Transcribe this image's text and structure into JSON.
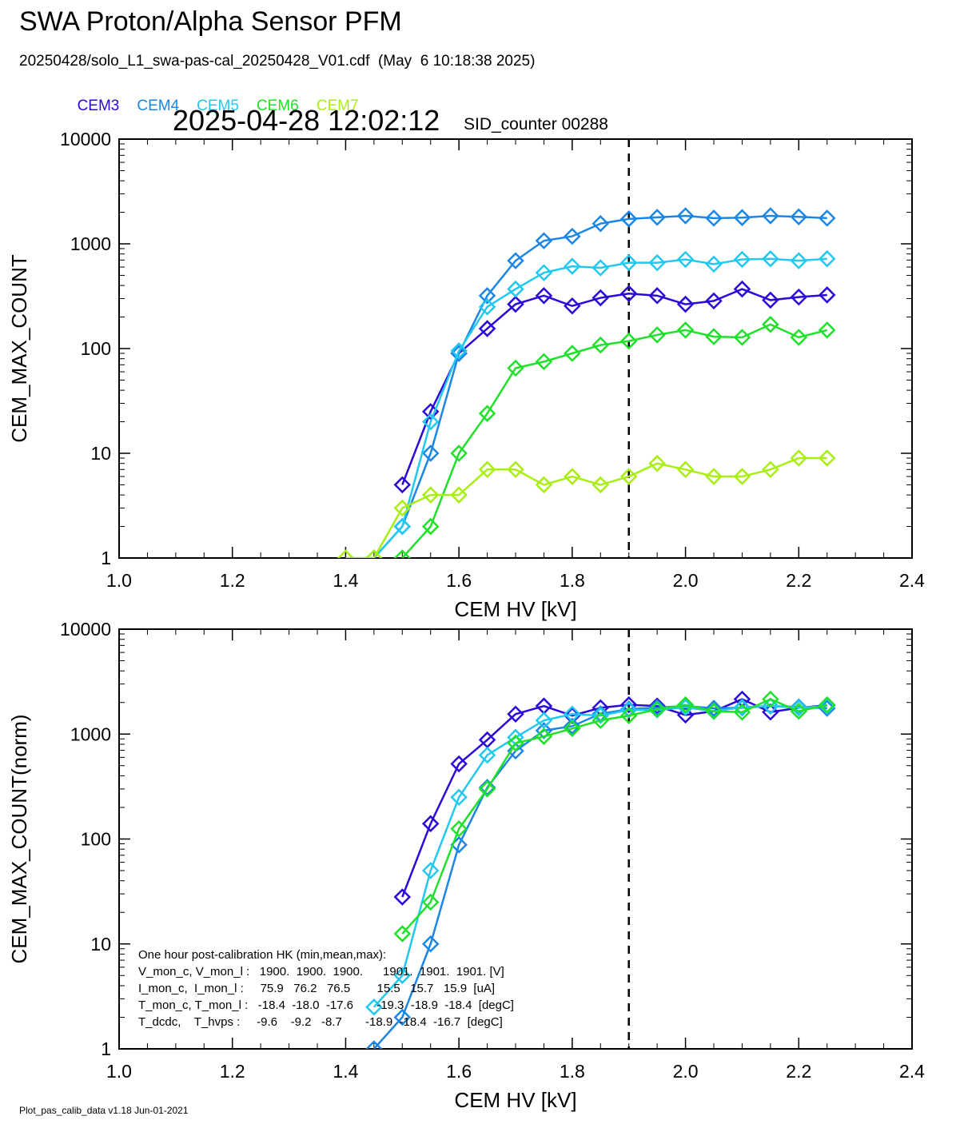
{
  "header": {
    "title": "SWA Proton/Alpha Sensor PFM",
    "subtitle": "20250428/solo_L1_swa-pas-cal_20250428_V01.cdf  (May  6 10:18:38 2025)",
    "datetime": "2025-04-28 12:02:12",
    "sid": "SID_counter 00288"
  },
  "legend": [
    {
      "name": "CEM3",
      "color": "#2a0ad6"
    },
    {
      "name": "CEM4",
      "color": "#1a86e6"
    },
    {
      "name": "CEM5",
      "color": "#22c8f0"
    },
    {
      "name": "CEM6",
      "color": "#20e02a"
    },
    {
      "name": "CEM7",
      "color": "#a8ee12"
    }
  ],
  "hk": {
    "heading": "One hour post-calibration HK (min,mean,max):",
    "rows": [
      "V_mon_c, V_mon_l :   1900.  1900.  1900.      1901.  1901.  1901. [V]",
      "I_mon_c,  I_mon_l :     75.9   76.2   76.5        15.5   15.7   15.9  [uA]",
      "T_mon_c, T_mon_l :   -18.4  -18.0  -17.6       -19.3  -18.9  -18.4  [degC]",
      "T_dcdc,    T_hvps :     -9.6    -9.2   -8.7       -18.9  -18.4  -16.7  [degC]"
    ]
  },
  "footer": "Plot_pas_calib_data v1.18 Jun-01-2021",
  "chart_data": [
    {
      "type": "line",
      "xlabel": "CEM HV [kV]",
      "ylabel": "CEM_MAX_COUNT",
      "xlim": [
        1.0,
        2.4
      ],
      "ylim": [
        1,
        10000
      ],
      "yscale": "log",
      "xticks": [
        "1.0",
        "1.2",
        "1.4",
        "1.6",
        "1.8",
        "2.0",
        "2.2",
        "2.4"
      ],
      "yticks": [
        "1",
        "10",
        "100",
        "1000",
        "10000"
      ],
      "vline": 1.9,
      "marker": "diamond",
      "x": [
        1.4,
        1.45,
        1.5,
        1.55,
        1.6,
        1.65,
        1.7,
        1.75,
        1.8,
        1.85,
        1.9,
        1.95,
        2.0,
        2.05,
        2.1,
        2.15,
        2.2,
        2.25
      ],
      "series": [
        {
          "name": "CEM3",
          "color": "#2a0ad6",
          "values": [
            null,
            null,
            5,
            25,
            90,
            155,
            265,
            320,
            255,
            305,
            335,
            320,
            265,
            285,
            370,
            290,
            310,
            325
          ]
        },
        {
          "name": "CEM4",
          "color": "#1a86e6",
          "values": [
            null,
            1,
            2,
            10,
            90,
            320,
            690,
            1070,
            1180,
            1560,
            1730,
            1790,
            1850,
            1760,
            1780,
            1850,
            1810,
            1760
          ]
        },
        {
          "name": "CEM5",
          "color": "#22c8f0",
          "values": [
            null,
            1,
            2,
            20,
            95,
            250,
            370,
            530,
            610,
            590,
            660,
            660,
            710,
            640,
            710,
            720,
            690,
            720
          ]
        },
        {
          "name": "CEM6",
          "color": "#20e02a",
          "values": [
            null,
            null,
            1,
            2,
            10,
            24,
            65,
            75,
            90,
            108,
            118,
            135,
            150,
            130,
            128,
            170,
            128,
            150
          ]
        },
        {
          "name": "CEM7",
          "color": "#a8ee12",
          "values": [
            1,
            1,
            3,
            4,
            4,
            7,
            7,
            5,
            6,
            5,
            6,
            8,
            7,
            6,
            6,
            7,
            9,
            9
          ]
        }
      ]
    },
    {
      "type": "line",
      "xlabel": "CEM HV [kV]",
      "ylabel": "CEM_MAX_COUNT(norm)",
      "xlim": [
        1.0,
        2.4
      ],
      "ylim": [
        1,
        10000
      ],
      "yscale": "log",
      "xticks": [
        "1.0",
        "1.2",
        "1.4",
        "1.6",
        "1.8",
        "2.0",
        "2.2",
        "2.4"
      ],
      "yticks": [
        "1",
        "10",
        "100",
        "1000",
        "10000"
      ],
      "vline": 1.9,
      "marker": "diamond",
      "x": [
        1.4,
        1.45,
        1.5,
        1.55,
        1.6,
        1.65,
        1.7,
        1.75,
        1.8,
        1.85,
        1.9,
        1.95,
        2.0,
        2.05,
        2.1,
        2.15,
        2.2,
        2.25
      ],
      "series": [
        {
          "name": "CEM3",
          "color": "#2a0ad6",
          "values": [
            null,
            null,
            28,
            140,
            520,
            880,
            1550,
            1850,
            1500,
            1780,
            1900,
            1850,
            1520,
            1650,
            2150,
            1620,
            1780,
            1880
          ]
        },
        {
          "name": "CEM4",
          "color": "#1a86e6",
          "values": [
            null,
            1,
            2,
            10,
            88,
            310,
            690,
            1080,
            1190,
            1560,
            1730,
            1790,
            1850,
            1760,
            1780,
            1850,
            1810,
            1760
          ]
        },
        {
          "name": "CEM5",
          "color": "#22c8f0",
          "values": [
            null,
            2.5,
            5,
            50,
            250,
            630,
            930,
            1350,
            1550,
            1500,
            1700,
            1700,
            1800,
            1650,
            1800,
            1850,
            1780,
            1850
          ]
        },
        {
          "name": "CEM6",
          "color": "#20e02a",
          "values": [
            null,
            null,
            12.5,
            25,
            125,
            300,
            820,
            950,
            1130,
            1350,
            1500,
            1720,
            1900,
            1650,
            1620,
            2150,
            1650,
            1900
          ]
        }
      ]
    }
  ]
}
